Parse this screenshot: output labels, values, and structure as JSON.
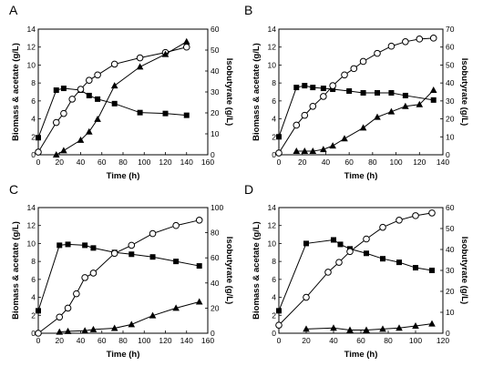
{
  "chart_data": [
    {
      "type": "line",
      "panel_label": "A",
      "xlabel": "Time (h)",
      "ylabel": "Biomass & acetate (g/L)",
      "y2label": "Isobutyrate (g/L)",
      "xlim": [
        0,
        160
      ],
      "ylim": [
        0,
        14
      ],
      "y2lim": [
        0,
        60
      ],
      "xticks": [
        0,
        20,
        40,
        60,
        80,
        100,
        120,
        140,
        160
      ],
      "yticks": [
        0,
        2,
        4,
        6,
        8,
        10,
        12,
        14
      ],
      "y2ticks": [
        0,
        10,
        20,
        30,
        40,
        50,
        60
      ],
      "series": [
        {
          "marker": "square",
          "axis": "left",
          "x": [
            0,
            17,
            24,
            40,
            48,
            56,
            72,
            96,
            120,
            140
          ],
          "y": [
            1.9,
            7.2,
            7.4,
            7.2,
            6.6,
            6.2,
            5.7,
            4.7,
            4.6,
            4.4
          ]
        },
        {
          "marker": "circle",
          "axis": "left",
          "x": [
            0,
            17,
            24,
            32,
            40,
            48,
            56,
            72,
            96,
            120,
            140
          ],
          "y": [
            0.3,
            3.6,
            4.6,
            6.2,
            7.3,
            8.3,
            8.9,
            10.1,
            10.8,
            11.4,
            12.0
          ]
        },
        {
          "marker": "triangle",
          "axis": "right",
          "x": [
            17,
            24,
            40,
            48,
            56,
            72,
            96,
            120,
            140
          ],
          "y": [
            0,
            2,
            7,
            11,
            17,
            33,
            42,
            48,
            54
          ]
        }
      ]
    },
    {
      "type": "line",
      "panel_label": "B",
      "xlabel": "Time (h)",
      "ylabel": "Biomass & acetate (g/L)",
      "y2label": "Isobutyrate (g/L)",
      "xlim": [
        0,
        140
      ],
      "ylim": [
        0,
        14
      ],
      "y2lim": [
        0,
        70
      ],
      "xticks": [
        0,
        20,
        40,
        60,
        80,
        100,
        120,
        140
      ],
      "yticks": [
        0,
        2,
        4,
        6,
        8,
        10,
        12,
        14
      ],
      "y2ticks": [
        0,
        10,
        20,
        30,
        40,
        50,
        60,
        70
      ],
      "series": [
        {
          "marker": "square",
          "axis": "left",
          "x": [
            0,
            15,
            22,
            29,
            38,
            46,
            60,
            72,
            84,
            96,
            108,
            132
          ],
          "y": [
            2.0,
            7.5,
            7.7,
            7.5,
            7.4,
            7.3,
            7.1,
            6.9,
            6.9,
            6.9,
            6.6,
            6.1
          ]
        },
        {
          "marker": "circle",
          "axis": "left",
          "x": [
            0,
            15,
            22,
            29,
            38,
            46,
            56,
            64,
            72,
            84,
            96,
            108,
            120,
            132
          ],
          "y": [
            0.2,
            3.3,
            4.4,
            5.4,
            6.5,
            7.7,
            8.9,
            9.6,
            10.4,
            11.3,
            12.1,
            12.6,
            12.9,
            13.0
          ]
        },
        {
          "marker": "triangle",
          "axis": "right",
          "x": [
            15,
            22,
            29,
            38,
            46,
            56,
            72,
            84,
            96,
            108,
            120,
            132
          ],
          "y": [
            2,
            2,
            2,
            3,
            5,
            9,
            15,
            21,
            24,
            27,
            28,
            36
          ]
        }
      ]
    },
    {
      "type": "line",
      "panel_label": "C",
      "xlabel": "Time (h)",
      "ylabel": "Biomass & acetate (g/L)",
      "y2label": "Isobutyrate (g/L)",
      "xlim": [
        0,
        160
      ],
      "ylim": [
        0,
        14
      ],
      "y2lim": [
        0,
        100
      ],
      "xticks": [
        0,
        20,
        40,
        60,
        80,
        100,
        120,
        140,
        160
      ],
      "yticks": [
        0,
        2,
        4,
        6,
        8,
        10,
        12,
        14
      ],
      "y2ticks": [
        0,
        20,
        40,
        60,
        80,
        100
      ],
      "series": [
        {
          "marker": "square",
          "axis": "left",
          "x": [
            0,
            20,
            28,
            44,
            52,
            72,
            88,
            108,
            130,
            152
          ],
          "y": [
            2.5,
            9.8,
            9.9,
            9.8,
            9.5,
            9.0,
            8.8,
            8.5,
            8.0,
            7.5
          ]
        },
        {
          "marker": "circle",
          "axis": "left",
          "x": [
            0,
            20,
            28,
            36,
            44,
            52,
            72,
            88,
            108,
            130,
            152
          ],
          "y": [
            0,
            1.8,
            2.8,
            4.4,
            6.2,
            6.7,
            8.9,
            9.8,
            11.1,
            12.0,
            12.6
          ]
        },
        {
          "marker": "triangle",
          "axis": "right",
          "x": [
            20,
            28,
            44,
            52,
            72,
            88,
            108,
            130,
            152
          ],
          "y": [
            1,
            1.5,
            2,
            3,
            4,
            7,
            14,
            20,
            25
          ]
        }
      ]
    },
    {
      "type": "line",
      "panel_label": "D",
      "xlabel": "Time (h)",
      "ylabel": "Biomass & acetate (g/L)",
      "y2label": "Isobutyrate (g/L)",
      "xlim": [
        0,
        120
      ],
      "ylim": [
        0,
        14
      ],
      "y2lim": [
        0,
        60
      ],
      "xticks": [
        0,
        20,
        40,
        60,
        80,
        100,
        120
      ],
      "yticks": [
        0,
        2,
        4,
        6,
        8,
        10,
        12,
        14
      ],
      "y2ticks": [
        0,
        10,
        20,
        30,
        40,
        50,
        60
      ],
      "series": [
        {
          "marker": "square",
          "axis": "left",
          "x": [
            0,
            20,
            40,
            45,
            52,
            64,
            76,
            88,
            100,
            112
          ],
          "y": [
            2.5,
            10.0,
            10.4,
            9.9,
            9.4,
            8.9,
            8.3,
            7.9,
            7.3,
            7.0
          ]
        },
        {
          "marker": "circle",
          "axis": "left",
          "x": [
            0,
            20,
            36,
            44,
            52,
            64,
            76,
            88,
            100,
            112
          ],
          "y": [
            0.9,
            4.0,
            6.8,
            7.9,
            9.1,
            10.5,
            11.8,
            12.6,
            13.1,
            13.4
          ]
        },
        {
          "marker": "triangle",
          "axis": "right",
          "x": [
            20,
            40,
            52,
            64,
            76,
            88,
            100,
            112
          ],
          "y": [
            2,
            2.5,
            1.5,
            1.5,
            2,
            2.5,
            3.5,
            4.5
          ]
        }
      ]
    }
  ]
}
